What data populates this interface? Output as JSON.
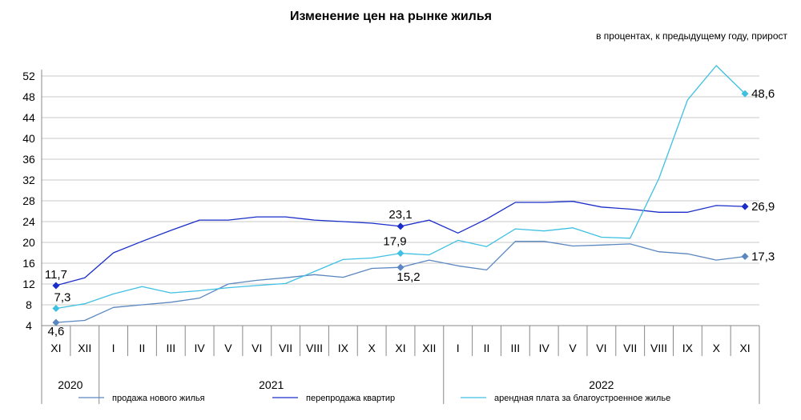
{
  "chart_data": {
    "type": "line",
    "title": "Изменение цен на рынке жилья",
    "subtitle": "в процентах, к предыдущему году, прирост",
    "xlabel": "",
    "ylabel": "",
    "ylim": [
      4,
      52
    ],
    "yticks": [
      4,
      8,
      12,
      16,
      20,
      24,
      28,
      32,
      36,
      40,
      44,
      48,
      52
    ],
    "grid": true,
    "legend_position": "bottom",
    "categories": [
      "XI",
      "XII",
      "I",
      "II",
      "III",
      "IV",
      "V",
      "VI",
      "VII",
      "VIII",
      "IX",
      "X",
      "XI",
      "XII",
      "I",
      "II",
      "III",
      "IV",
      "V",
      "VI",
      "VII",
      "VIII",
      "IX",
      "X",
      "XI"
    ],
    "years": [
      {
        "label": "2020",
        "from": 0,
        "to": 1
      },
      {
        "label": "2021",
        "from": 2,
        "to": 13
      },
      {
        "label": "2022",
        "from": 14,
        "to": 24
      }
    ],
    "series": [
      {
        "name": "продажа нового  жилья",
        "color": "#5b87c0",
        "values": [
          4.6,
          5.0,
          7.5,
          8.0,
          8.5,
          9.3,
          12.0,
          12.7,
          13.2,
          13.8,
          13.3,
          15.0,
          15.2,
          16.6,
          15.5,
          14.7,
          20.2,
          20.2,
          19.3,
          19.5,
          19.7,
          18.2,
          17.8,
          16.6,
          17.3
        ],
        "labels": [
          {
            "index": 0,
            "text": "4,6"
          },
          {
            "index": 12,
            "text": "15,2"
          },
          {
            "index": 24,
            "text": "17,3"
          }
        ]
      },
      {
        "name": "перепродажа  квартир",
        "color": "#1a2dc9",
        "values": [
          11.7,
          13.2,
          18.0,
          20.2,
          22.3,
          24.3,
          24.3,
          24.9,
          24.9,
          24.3,
          24.0,
          23.7,
          23.1,
          24.3,
          21.8,
          24.5,
          27.7,
          27.7,
          27.9,
          26.8,
          26.4,
          25.8,
          25.8,
          27.1,
          26.9
        ],
        "labels": [
          {
            "index": 0,
            "text": "11,7"
          },
          {
            "index": 12,
            "text": "23,1"
          },
          {
            "index": 24,
            "text": "26,9"
          }
        ]
      },
      {
        "name": "арендная  плата за  благоустроенное   жилье",
        "color": "#3fc0e3",
        "values": [
          7.3,
          8.2,
          10.1,
          11.5,
          10.3,
          10.7,
          11.3,
          11.7,
          12.1,
          14.4,
          16.7,
          17.0,
          17.9,
          17.6,
          20.4,
          19.2,
          22.6,
          22.2,
          22.8,
          21.0,
          20.8,
          32.3,
          47.4,
          54.0,
          48.6
        ],
        "labels": [
          {
            "index": 0,
            "text": "7,3"
          },
          {
            "index": 12,
            "text": "17,9"
          },
          {
            "index": 24,
            "text": "48,6"
          }
        ]
      }
    ]
  }
}
